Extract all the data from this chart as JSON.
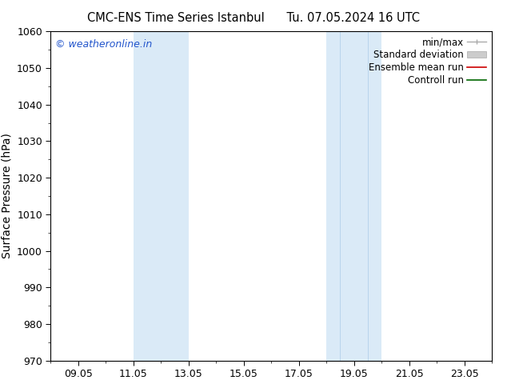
{
  "title": "CMC-ENS Time Series Istanbul",
  "title2": "Tu. 07.05.2024 16 UTC",
  "ylabel": "Surface Pressure (hPa)",
  "ylim": [
    970,
    1060
  ],
  "yticks": [
    970,
    980,
    990,
    1000,
    1010,
    1020,
    1030,
    1040,
    1050,
    1060
  ],
  "xlim": [
    0,
    16
  ],
  "xtick_labels": [
    "09.05",
    "11.05",
    "13.05",
    "15.05",
    "17.05",
    "19.05",
    "21.05",
    "23.05"
  ],
  "xtick_positions": [
    1,
    3,
    5,
    7,
    9,
    11,
    13,
    15
  ],
  "shaded_regions": [
    {
      "xmin": 3.0,
      "xmax": 5.0,
      "color": "#daeaf7"
    },
    {
      "xmin": 10.0,
      "xmax": 10.5,
      "color": "#daeaf7"
    },
    {
      "xmin": 10.5,
      "xmax": 12.5,
      "color": "#daeaf7"
    },
    {
      "xmin": 12.5,
      "xmax": 13.0,
      "color": "#daeaf7"
    }
  ],
  "watermark": "© weatheronline.in",
  "watermark_color": "#2255cc",
  "legend_labels": [
    "min/max",
    "Standard deviation",
    "Ensemble mean run",
    "Controll run"
  ],
  "bg_color": "#ffffff",
  "font_size": 9,
  "title_font_size": 10.5
}
